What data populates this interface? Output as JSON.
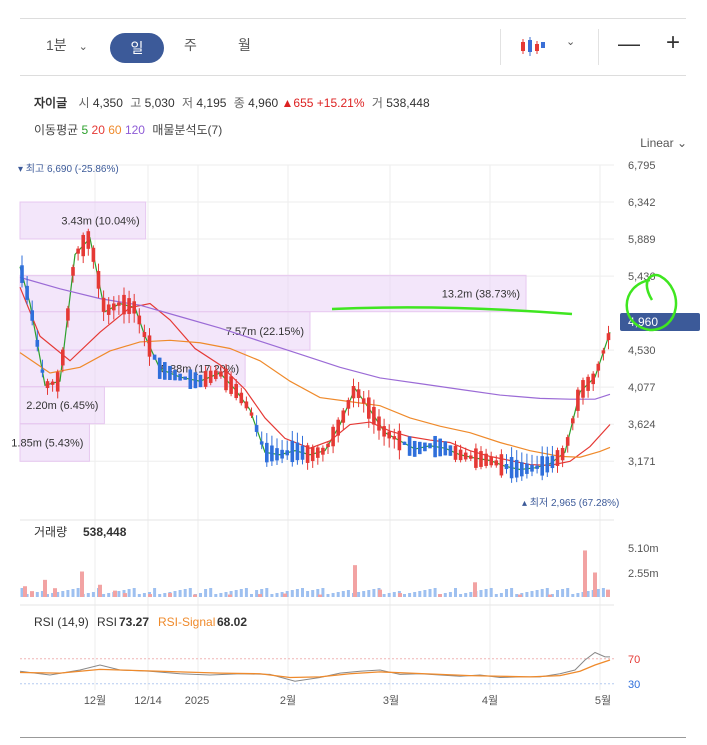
{
  "toolbar": {
    "interval": "1분",
    "tabs": [
      "일",
      "주",
      "월"
    ],
    "active_tab": "일",
    "zoom_out": "—",
    "zoom_in": "+"
  },
  "stock": {
    "name": "자이글",
    "open_label": "시",
    "open": "4,350",
    "high_label": "고",
    "high": "5,030",
    "low_label": "저",
    "low": "4,195",
    "close_label": "종",
    "close": "4,960",
    "change": "655",
    "change_pct": "+15.21%",
    "volume_label": "거",
    "volume": "538,448"
  },
  "moving_avg": {
    "label": "이동평균",
    "periods": [
      {
        "p": "5",
        "color": "#2ca02c"
      },
      {
        "p": "20",
        "color": "#e53935"
      },
      {
        "p": "60",
        "color": "#ef8a2b"
      },
      {
        "p": "120",
        "color": "#8e5bd6"
      }
    ],
    "profile": "매물분석도(7)"
  },
  "scale_label": "Linear",
  "price_axis": [
    "6,795",
    "6,342",
    "5,889",
    "5,436",
    "4,530",
    "4,077",
    "3,624",
    "3,171"
  ],
  "current_price": "4,960",
  "highest": "최고 6,690 (-25.86%)",
  "lowest": "최저 2,965 (67.28%)",
  "volume_panel": {
    "label": "거래량",
    "value": "538,448",
    "axis": [
      "5.10m",
      "2.55m"
    ]
  },
  "rsi_panel": {
    "label": "RSI (14,9)",
    "rsi_label": "RSI",
    "rsi": "73.27",
    "signal_label": "RSI-Signal",
    "signal": "68.02",
    "axis": [
      "70",
      "30"
    ]
  },
  "x_axis": [
    "12월",
    "12/14",
    "2025",
    "2월",
    "3월",
    "4월",
    "5월"
  ],
  "chart_data": {
    "type": "candlestick",
    "ylim": [
      2800,
      6795
    ],
    "volume_profile": [
      {
        "label": "3.43m (10.04%)",
        "price_from": 5890,
        "price_to": 6342,
        "share": 0.2115
      },
      {
        "label": "13.2m (38.73%)",
        "price_from": 5000,
        "price_to": 5445,
        "share": 0.8519
      },
      {
        "label": "7.57m (22.15%)",
        "price_from": 4530,
        "price_to": 5000,
        "share": 0.4882
      },
      {
        "label": "5.88m (17.20%)",
        "price_from": 4083,
        "price_to": 4530,
        "share": 0.379
      },
      {
        "label": "2.20m (6.45%)",
        "price_from": 3630,
        "price_to": 4083,
        "share": 0.1421
      },
      {
        "label": "1.85m (5.43%)",
        "price_from": 3170,
        "price_to": 3630,
        "share": 0.1169
      }
    ],
    "price_series": [
      {
        "name": "5",
        "color": "#2ca02c",
        "points": [
          [
            0,
            5550
          ],
          [
            10,
            5100
          ],
          [
            25,
            4100
          ],
          [
            40,
            4150
          ],
          [
            55,
            5700
          ],
          [
            70,
            5900
          ],
          [
            85,
            5000
          ],
          [
            100,
            5100
          ],
          [
            115,
            5050
          ],
          [
            125,
            4700
          ],
          [
            140,
            4300
          ],
          [
            160,
            4200
          ],
          [
            180,
            4150
          ],
          [
            200,
            4250
          ],
          [
            215,
            4050
          ],
          [
            230,
            3800
          ],
          [
            245,
            3280
          ],
          [
            260,
            3250
          ],
          [
            275,
            3300
          ],
          [
            290,
            3250
          ],
          [
            305,
            3300
          ],
          [
            320,
            3620
          ],
          [
            335,
            4060
          ],
          [
            350,
            3800
          ],
          [
            365,
            3520
          ],
          [
            380,
            3420
          ],
          [
            395,
            3320
          ],
          [
            410,
            3360
          ],
          [
            425,
            3330
          ],
          [
            440,
            3250
          ],
          [
            455,
            3210
          ],
          [
            470,
            3180
          ],
          [
            485,
            3110
          ],
          [
            500,
            3070
          ],
          [
            515,
            3090
          ],
          [
            530,
            3140
          ],
          [
            545,
            3280
          ],
          [
            560,
            4020
          ],
          [
            575,
            4200
          ],
          [
            590,
            4750
          ]
        ]
      },
      {
        "name": "20",
        "color": "#e53935",
        "points": [
          [
            0,
            5300
          ],
          [
            20,
            4700
          ],
          [
            50,
            4400
          ],
          [
            80,
            4750
          ],
          [
            110,
            5050
          ],
          [
            130,
            5100
          ],
          [
            150,
            4900
          ],
          [
            175,
            4550
          ],
          [
            200,
            4350
          ],
          [
            225,
            4050
          ],
          [
            245,
            3700
          ],
          [
            265,
            3450
          ],
          [
            290,
            3330
          ],
          [
            310,
            3420
          ],
          [
            330,
            3620
          ],
          [
            350,
            3650
          ],
          [
            370,
            3540
          ],
          [
            390,
            3470
          ],
          [
            410,
            3430
          ],
          [
            430,
            3400
          ],
          [
            450,
            3300
          ],
          [
            470,
            3230
          ],
          [
            490,
            3180
          ],
          [
            510,
            3130
          ],
          [
            530,
            3120
          ],
          [
            550,
            3170
          ],
          [
            570,
            3350
          ],
          [
            590,
            3620
          ]
        ]
      },
      {
        "name": "60",
        "color": "#ef8a2b",
        "points": [
          [
            0,
            4500
          ],
          [
            30,
            4250
          ],
          [
            60,
            4320
          ],
          [
            90,
            4520
          ],
          [
            120,
            4630
          ],
          [
            150,
            4650
          ],
          [
            180,
            4620
          ],
          [
            210,
            4550
          ],
          [
            240,
            4400
          ],
          [
            270,
            4150
          ],
          [
            300,
            3950
          ],
          [
            330,
            3900
          ],
          [
            360,
            3850
          ],
          [
            390,
            3700
          ],
          [
            420,
            3600
          ],
          [
            450,
            3520
          ],
          [
            480,
            3400
          ],
          [
            510,
            3300
          ],
          [
            540,
            3230
          ],
          [
            560,
            3220
          ],
          [
            580,
            3290
          ],
          [
            590,
            3340
          ]
        ]
      },
      {
        "name": "120",
        "color": "#9b6bd6",
        "points": [
          [
            0,
            5420
          ],
          [
            40,
            5280
          ],
          [
            80,
            5160
          ],
          [
            120,
            5080
          ],
          [
            160,
            4940
          ],
          [
            200,
            4800
          ],
          [
            240,
            4640
          ],
          [
            280,
            4480
          ],
          [
            320,
            4320
          ],
          [
            360,
            4190
          ],
          [
            400,
            4120
          ],
          [
            440,
            4050
          ],
          [
            480,
            3980
          ],
          [
            520,
            3940
          ],
          [
            550,
            3930
          ],
          [
            575,
            3930
          ],
          [
            590,
            3990
          ]
        ]
      }
    ],
    "volume_bars": [
      [
        5,
        0.22
      ],
      [
        12,
        0.12
      ],
      [
        25,
        0.35
      ],
      [
        35,
        0.18
      ],
      [
        62,
        0.52
      ],
      [
        80,
        0.25
      ],
      [
        95,
        0.13
      ],
      [
        105,
        0.08
      ],
      [
        130,
        0.06
      ],
      [
        150,
        0.08
      ],
      [
        175,
        0.05
      ],
      [
        210,
        0.05
      ],
      [
        240,
        0.06
      ],
      [
        265,
        0.07
      ],
      [
        300,
        0.05
      ],
      [
        335,
        0.65
      ],
      [
        360,
        0.15
      ],
      [
        380,
        0.08
      ],
      [
        420,
        0.06
      ],
      [
        455,
        0.3
      ],
      [
        500,
        0.05
      ],
      [
        530,
        0.05
      ],
      [
        565,
        0.95
      ],
      [
        575,
        0.5
      ],
      [
        588,
        0.15
      ]
    ],
    "rsi_series": [
      [
        0,
        50
      ],
      [
        30,
        44
      ],
      [
        60,
        52
      ],
      [
        80,
        60
      ],
      [
        100,
        52
      ],
      [
        130,
        50
      ],
      [
        160,
        46
      ],
      [
        190,
        44
      ],
      [
        220,
        46
      ],
      [
        250,
        45
      ],
      [
        275,
        34
      ],
      [
        300,
        40
      ],
      [
        320,
        47
      ],
      [
        340,
        50
      ],
      [
        360,
        52
      ],
      [
        380,
        45
      ],
      [
        400,
        46
      ],
      [
        420,
        44
      ],
      [
        440,
        42
      ],
      [
        460,
        44
      ],
      [
        480,
        40
      ],
      [
        500,
        41
      ],
      [
        520,
        41
      ],
      [
        540,
        46
      ],
      [
        555,
        52
      ],
      [
        565,
        68
      ],
      [
        575,
        80
      ],
      [
        585,
        73
      ],
      [
        590,
        73
      ]
    ],
    "rsi_signal": [
      [
        0,
        48
      ],
      [
        40,
        47
      ],
      [
        80,
        53
      ],
      [
        120,
        51
      ],
      [
        160,
        49
      ],
      [
        200,
        47
      ],
      [
        240,
        46
      ],
      [
        270,
        40
      ],
      [
        300,
        41
      ],
      [
        330,
        46
      ],
      [
        360,
        49
      ],
      [
        390,
        47
      ],
      [
        420,
        45
      ],
      [
        450,
        43
      ],
      [
        480,
        42
      ],
      [
        510,
        41
      ],
      [
        540,
        43
      ],
      [
        560,
        50
      ],
      [
        575,
        60
      ],
      [
        590,
        68
      ]
    ]
  }
}
